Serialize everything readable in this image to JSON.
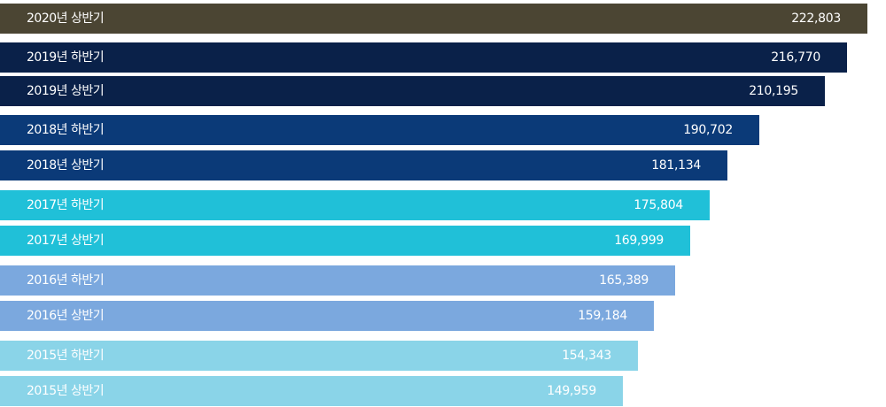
{
  "chart_data": {
    "type": "bar",
    "orientation": "horizontal",
    "categories": [
      "2020년 상반기",
      "2019년 하반기",
      "2019년 상반기",
      "2018년 하반기",
      "2018년 상반기",
      "2017년 하반기",
      "2017년 상반기",
      "2016년 하반기",
      "2016년 상반기",
      "2015년 하반기",
      "2015년 상반기"
    ],
    "values": [
      222803,
      216770,
      210195,
      190702,
      181134,
      175804,
      169999,
      165389,
      159184,
      154343,
      149959
    ],
    "value_labels": [
      "222,803",
      "216,770",
      "210,195",
      "190,702",
      "181,134",
      "175,804",
      "169,999",
      "165,389",
      "159,184",
      "154,343",
      "149,959"
    ],
    "colors": [
      "#4b4533",
      "#0a2149",
      "#0a2149",
      "#0b3a78",
      "#0b3a78",
      "#20c0d8",
      "#20c0d8",
      "#7ba8de",
      "#7ba8de",
      "#8ad4e8",
      "#8ad4e8"
    ],
    "title": "",
    "xlabel": "",
    "ylabel": "",
    "legend": "none",
    "grid": false
  }
}
